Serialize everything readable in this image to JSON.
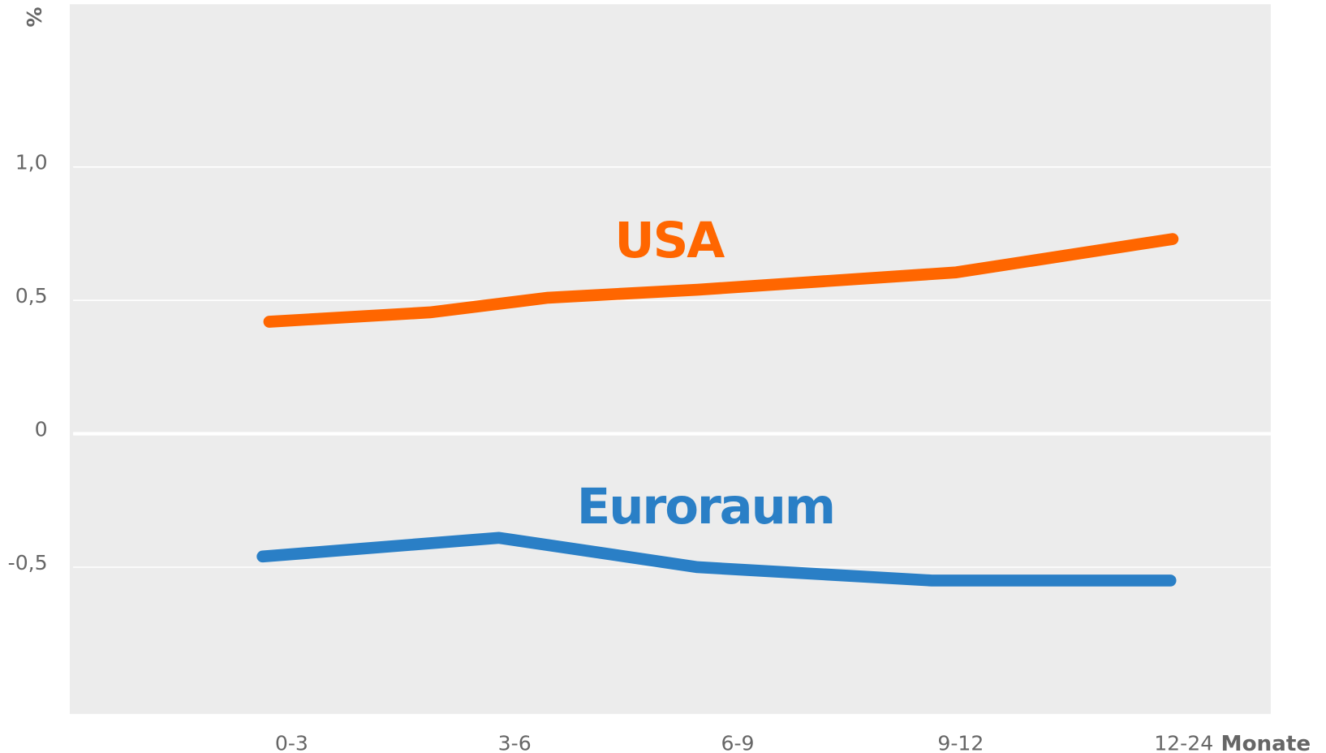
{
  "chart_data": {
    "type": "line",
    "y_label": "%",
    "x_label": "Monate",
    "xlim": [
      -0.995,
      4.39
    ],
    "xticks": [
      {
        "value": 0,
        "label": "0-3"
      },
      {
        "value": 1,
        "label": "3-6"
      },
      {
        "value": 2,
        "label": "6-9"
      },
      {
        "value": 3,
        "label": "9-12"
      },
      {
        "value": 4,
        "label": "12-24"
      }
    ],
    "ylim": [
      -1.05,
      1.61
    ],
    "yticks": [
      {
        "value": 1.0,
        "label": "1,0"
      },
      {
        "value": 0.5,
        "label": "0,5"
      },
      0,
      {
        "value": -0.5,
        "label": "-0,5"
      }
    ],
    "grid": true,
    "series": [
      {
        "name": "USA",
        "color": "#ff6600",
        "x": [
          -0.1,
          0.62,
          1.15,
          1.82,
          2.98,
          3.95
        ],
        "values": [
          0.42,
          0.455,
          0.51,
          0.54,
          0.605,
          0.73
        ]
      },
      {
        "name": "Euroraum",
        "color": "#2a7fc6",
        "x": [
          -0.13,
          0.93,
          1.82,
          2.87,
          3.94
        ],
        "values": [
          -0.46,
          -0.39,
          -0.5,
          -0.55,
          -0.55
        ]
      }
    ]
  }
}
